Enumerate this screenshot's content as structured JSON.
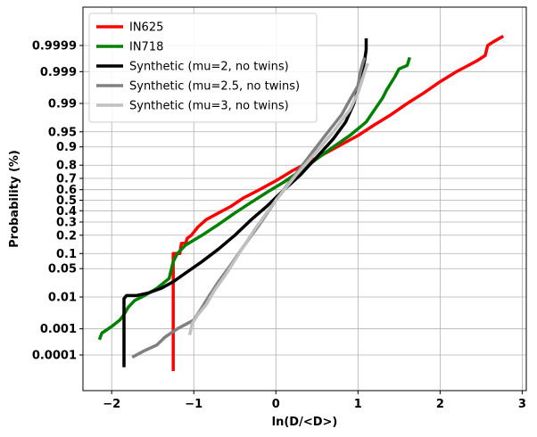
{
  "chart_data": {
    "type": "line",
    "title": "",
    "xlabel": "ln(D/<D>)",
    "ylabel": "Probability (%)",
    "xlim": [
      -2.35,
      3.05
    ],
    "x_ticks": [
      {
        "value": -2,
        "label": "−2"
      },
      {
        "value": -1,
        "label": "−1"
      },
      {
        "value": 0,
        "label": "0"
      },
      {
        "value": 1,
        "label": "1"
      },
      {
        "value": 2,
        "label": "2"
      },
      {
        "value": 3,
        "label": "3"
      }
    ],
    "y_scale": "probability (normal quantile)",
    "y_ticks": [
      {
        "value": 0.9999,
        "label": "0.9999"
      },
      {
        "value": 0.999,
        "label": "0.999"
      },
      {
        "value": 0.99,
        "label": "0.99"
      },
      {
        "value": 0.95,
        "label": "0.95"
      },
      {
        "value": 0.9,
        "label": "0.9"
      },
      {
        "value": 0.8,
        "label": "0.8"
      },
      {
        "value": 0.7,
        "label": "0.7"
      },
      {
        "value": 0.6,
        "label": "0.6"
      },
      {
        "value": 0.5,
        "label": "0.5"
      },
      {
        "value": 0.4,
        "label": "0.4"
      },
      {
        "value": 0.3,
        "label": "0.3"
      },
      {
        "value": 0.2,
        "label": "0.2"
      },
      {
        "value": 0.1,
        "label": "0.1"
      },
      {
        "value": 0.05,
        "label": "0.05"
      },
      {
        "value": 0.01,
        "label": "0.01"
      },
      {
        "value": 0.001,
        "label": "0.001"
      },
      {
        "value": 0.0001,
        "label": "0.0001"
      }
    ],
    "grid": true,
    "legend_position": "top-left",
    "series": [
      {
        "name": "IN625",
        "color": "#ff0000",
        "points": [
          [
            -1.25,
            2e-05
          ],
          [
            -1.25,
            0.01
          ],
          [
            -1.25,
            0.02
          ],
          [
            -1.25,
            0.1
          ],
          [
            -1.17,
            0.1
          ],
          [
            -1.15,
            0.15
          ],
          [
            -1.1,
            0.15
          ],
          [
            -1.08,
            0.18
          ],
          [
            -1.03,
            0.2
          ],
          [
            -0.95,
            0.26
          ],
          [
            -0.85,
            0.32
          ],
          [
            -0.7,
            0.38
          ],
          [
            -0.55,
            0.44
          ],
          [
            -0.4,
            0.52
          ],
          [
            -0.2,
            0.6
          ],
          [
            0,
            0.68
          ],
          [
            0.2,
            0.76
          ],
          [
            0.4,
            0.82
          ],
          [
            0.6,
            0.87
          ],
          [
            0.8,
            0.91
          ],
          [
            1.0,
            0.94
          ],
          [
            1.2,
            0.965
          ],
          [
            1.4,
            0.98
          ],
          [
            1.6,
            0.99
          ],
          [
            1.8,
            0.995
          ],
          [
            2.0,
            0.9978
          ],
          [
            2.2,
            0.999
          ],
          [
            2.3,
            0.9993
          ],
          [
            2.45,
            0.9996
          ],
          [
            2.55,
            0.99975
          ],
          [
            2.58,
            0.9999
          ],
          [
            2.65,
            0.99993
          ],
          [
            2.77,
            0.99996
          ]
        ]
      },
      {
        "name": "IN718",
        "color": "#008000",
        "points": [
          [
            -2.15,
            0.0004
          ],
          [
            -2.12,
            0.0007
          ],
          [
            -2.0,
            0.0012
          ],
          [
            -1.9,
            0.002
          ],
          [
            -1.85,
            0.003
          ],
          [
            -1.8,
            0.005
          ],
          [
            -1.72,
            0.008
          ],
          [
            -1.6,
            0.011
          ],
          [
            -1.45,
            0.017
          ],
          [
            -1.3,
            0.03
          ],
          [
            -1.25,
            0.07
          ],
          [
            -1.2,
            0.1
          ],
          [
            -1.1,
            0.14
          ],
          [
            -0.9,
            0.2
          ],
          [
            -0.7,
            0.28
          ],
          [
            -0.5,
            0.38
          ],
          [
            -0.3,
            0.48
          ],
          [
            -0.1,
            0.58
          ],
          [
            0.1,
            0.67
          ],
          [
            0.3,
            0.76
          ],
          [
            0.5,
            0.84
          ],
          [
            0.7,
            0.9
          ],
          [
            0.9,
            0.94
          ],
          [
            1.1,
            0.97
          ],
          [
            1.2,
            0.985
          ],
          [
            1.3,
            0.993
          ],
          [
            1.35,
            0.996
          ],
          [
            1.45,
            0.9985
          ],
          [
            1.5,
            0.9992
          ],
          [
            1.6,
            0.9994
          ],
          [
            1.63,
            0.9997
          ]
        ]
      },
      {
        "name": "Synthetic (mu=2, no twins)",
        "color": "#000000",
        "points": [
          [
            -1.85,
            3e-05
          ],
          [
            -1.85,
            0.009
          ],
          [
            -1.82,
            0.011
          ],
          [
            -1.7,
            0.011
          ],
          [
            -1.55,
            0.013
          ],
          [
            -1.4,
            0.017
          ],
          [
            -1.25,
            0.025
          ],
          [
            -1.1,
            0.04
          ],
          [
            -0.9,
            0.07
          ],
          [
            -0.7,
            0.12
          ],
          [
            -0.5,
            0.2
          ],
          [
            -0.3,
            0.32
          ],
          [
            -0.1,
            0.45
          ],
          [
            0.1,
            0.6
          ],
          [
            0.3,
            0.73
          ],
          [
            0.5,
            0.85
          ],
          [
            0.7,
            0.93
          ],
          [
            0.85,
            0.97
          ],
          [
            0.95,
            0.99
          ],
          [
            1.0,
            0.996
          ],
          [
            1.05,
            0.999
          ],
          [
            1.08,
            0.9996
          ],
          [
            1.1,
            0.99985
          ],
          [
            1.1,
            0.99995
          ]
        ]
      },
      {
        "name": "Synthetic (mu=2.5, no twins)",
        "color": "#808080",
        "points": [
          [
            -1.75,
            8e-05
          ],
          [
            -1.6,
            0.00015
          ],
          [
            -1.45,
            0.00025
          ],
          [
            -1.35,
            0.0005
          ],
          [
            -1.2,
            0.001
          ],
          [
            -1.0,
            0.002
          ],
          [
            -0.9,
            0.005
          ],
          [
            -0.8,
            0.012
          ],
          [
            -0.7,
            0.025
          ],
          [
            -0.55,
            0.06
          ],
          [
            -0.4,
            0.13
          ],
          [
            -0.2,
            0.28
          ],
          [
            0,
            0.5
          ],
          [
            0.2,
            0.7
          ],
          [
            0.4,
            0.85
          ],
          [
            0.6,
            0.94
          ],
          [
            0.8,
            0.98
          ],
          [
            0.9,
            0.992
          ],
          [
            1.0,
            0.997
          ],
          [
            1.03,
            0.999
          ],
          [
            1.05,
            0.9994
          ],
          [
            1.08,
            0.9997
          ]
        ]
      },
      {
        "name": "Synthetic (mu=3, no twins)",
        "color": "#c0c0c0",
        "points": [
          [
            -1.05,
            0.0006
          ],
          [
            -1.02,
            0.0015
          ],
          [
            -0.95,
            0.003
          ],
          [
            -0.85,
            0.006
          ],
          [
            -0.75,
            0.015
          ],
          [
            -0.6,
            0.04
          ],
          [
            -0.45,
            0.1
          ],
          [
            -0.25,
            0.25
          ],
          [
            0,
            0.5
          ],
          [
            0.25,
            0.73
          ],
          [
            0.5,
            0.88
          ],
          [
            0.7,
            0.95
          ],
          [
            0.9,
            0.985
          ],
          [
            1.0,
            0.995
          ],
          [
            1.05,
            0.998
          ],
          [
            1.1,
            0.9993
          ],
          [
            1.12,
            0.9995
          ]
        ]
      }
    ]
  }
}
